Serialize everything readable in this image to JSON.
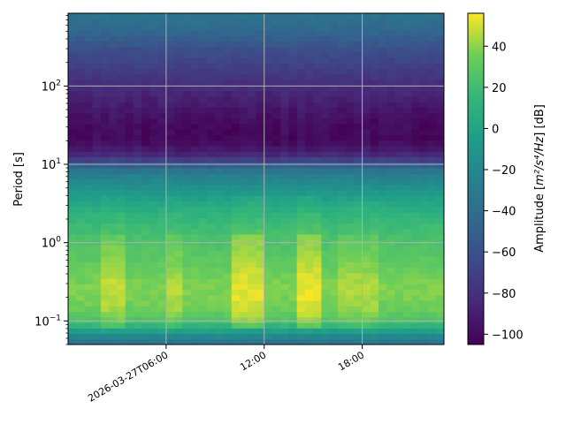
{
  "chart_data": {
    "type": "heatmap",
    "ylabel": "Period [s]",
    "y_scale": "log",
    "ylim": [
      0.05,
      850
    ],
    "y_ticks": [
      {
        "value": 0.1,
        "base": "10",
        "exp": "−1"
      },
      {
        "value": 1,
        "base": "10",
        "exp": "0"
      },
      {
        "value": 10,
        "base": "10",
        "exp": "1"
      },
      {
        "value": 100,
        "base": "10",
        "exp": "2"
      }
    ],
    "x_ticks": [
      {
        "hours": 6,
        "label": "2026-03-27T06:00"
      },
      {
        "hours": 12,
        "label": "12:00"
      },
      {
        "hours": 18,
        "label": "18:00"
      }
    ],
    "xlim_hours": [
      0,
      23
    ],
    "grid": true,
    "colormap": "viridis",
    "colorbar": {
      "label_prefix": "Amplitude [",
      "label_math": "m²/s⁴/Hz",
      "label_suffix": "] [dB]",
      "vmin": -105,
      "vmax": 56,
      "ticks": [
        "40",
        "20",
        "0",
        "−20",
        "−40",
        "−60",
        "−80",
        "−100"
      ],
      "tick_values": [
        40,
        20,
        0,
        -20,
        -40,
        -60,
        -80,
        -100
      ]
    },
    "period_profile_db": [
      {
        "period": 0.05,
        "db": -40
      },
      {
        "period": 0.065,
        "db": -20
      },
      {
        "period": 0.08,
        "db": 5
      },
      {
        "period": 0.1,
        "db": 25
      },
      {
        "period": 0.15,
        "db": 35
      },
      {
        "period": 0.25,
        "db": 38
      },
      {
        "period": 0.4,
        "db": 35
      },
      {
        "period": 0.7,
        "db": 28
      },
      {
        "period": 1.0,
        "db": 25
      },
      {
        "period": 1.5,
        "db": 20
      },
      {
        "period": 2.5,
        "db": 10
      },
      {
        "period": 4,
        "db": -5
      },
      {
        "period": 7,
        "db": -25
      },
      {
        "period": 9,
        "db": -40
      },
      {
        "period": 11,
        "db": -65
      },
      {
        "period": 14,
        "db": -88
      },
      {
        "period": 20,
        "db": -100
      },
      {
        "period": 30,
        "db": -100
      },
      {
        "period": 45,
        "db": -95
      },
      {
        "period": 70,
        "db": -88
      },
      {
        "period": 110,
        "db": -80
      },
      {
        "period": 180,
        "db": -70
      },
      {
        "period": 300,
        "db": -60
      },
      {
        "period": 500,
        "db": -45
      },
      {
        "period": 850,
        "db": -35
      }
    ],
    "time_bursts": [
      {
        "start_h": 2.0,
        "end_h": 3.5,
        "boost_db": 10
      },
      {
        "start_h": 6.0,
        "end_h": 7.0,
        "boost_db": 8
      },
      {
        "start_h": 10.0,
        "end_h": 12.0,
        "boost_db": 15
      },
      {
        "start_h": 14.2,
        "end_h": 15.6,
        "boost_db": 16
      },
      {
        "start_h": 16.5,
        "end_h": 19.0,
        "boost_db": 7
      }
    ]
  }
}
